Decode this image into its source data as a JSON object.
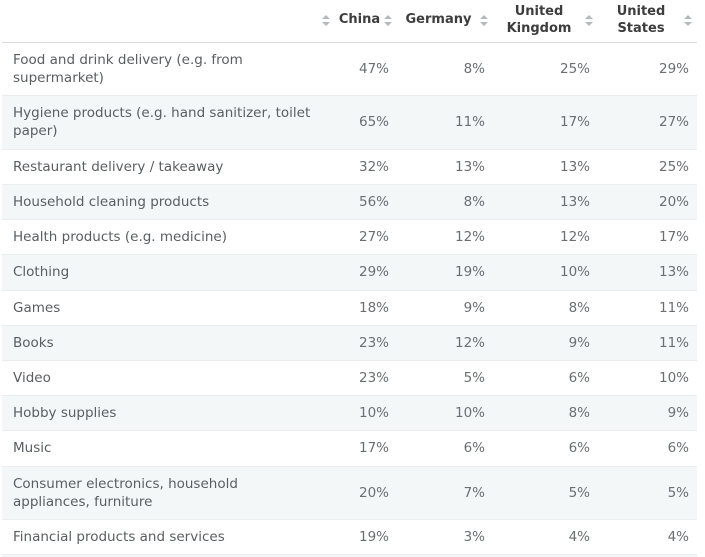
{
  "icons": {
    "sort_icon": "up-down-triangles"
  },
  "table": {
    "columns": [
      {
        "label": "China"
      },
      {
        "label": "Germany"
      },
      {
        "label": "United Kingdom"
      },
      {
        "label": "United States"
      }
    ],
    "rows": [
      {
        "label": "Food and drink delivery (e.g. from supermarket)",
        "values": [
          "47%",
          "8%",
          "25%",
          "29%"
        ]
      },
      {
        "label": "Hygiene products (e.g. hand sanitizer, toilet paper)",
        "values": [
          "65%",
          "11%",
          "17%",
          "27%"
        ]
      },
      {
        "label": "Restaurant delivery / takeaway",
        "values": [
          "32%",
          "13%",
          "13%",
          "25%"
        ]
      },
      {
        "label": "Household cleaning products",
        "values": [
          "56%",
          "8%",
          "13%",
          "20%"
        ]
      },
      {
        "label": "Health products (e.g. medicine)",
        "values": [
          "27%",
          "12%",
          "12%",
          "17%"
        ]
      },
      {
        "label": "Clothing",
        "values": [
          "29%",
          "19%",
          "10%",
          "13%"
        ]
      },
      {
        "label": "Games",
        "values": [
          "18%",
          "9%",
          "8%",
          "11%"
        ]
      },
      {
        "label": "Books",
        "values": [
          "23%",
          "12%",
          "9%",
          "11%"
        ]
      },
      {
        "label": "Video",
        "values": [
          "23%",
          "5%",
          "6%",
          "10%"
        ]
      },
      {
        "label": "Hobby supplies",
        "values": [
          "10%",
          "10%",
          "8%",
          "9%"
        ]
      },
      {
        "label": "Music",
        "values": [
          "17%",
          "6%",
          "6%",
          "6%"
        ]
      },
      {
        "label": "Consumer electronics, household appliances, furniture",
        "values": [
          "20%",
          "7%",
          "5%",
          "5%"
        ]
      },
      {
        "label": "Financial products and services",
        "values": [
          "19%",
          "3%",
          "4%",
          "4%"
        ]
      }
    ]
  },
  "chart_data": {
    "type": "table",
    "title": "",
    "categories": [
      "Food and drink delivery (e.g. from supermarket)",
      "Hygiene products (e.g. hand sanitizer, toilet paper)",
      "Restaurant delivery / takeaway",
      "Household cleaning products",
      "Health products (e.g. medicine)",
      "Clothing",
      "Games",
      "Books",
      "Video",
      "Hobby supplies",
      "Music",
      "Consumer electronics, household appliances, furniture",
      "Financial products and services"
    ],
    "series": [
      {
        "name": "China",
        "values": [
          47,
          65,
          32,
          56,
          27,
          29,
          18,
          23,
          23,
          10,
          17,
          20,
          19
        ]
      },
      {
        "name": "Germany",
        "values": [
          8,
          11,
          13,
          8,
          12,
          19,
          9,
          12,
          5,
          10,
          6,
          7,
          3
        ]
      },
      {
        "name": "United Kingdom",
        "values": [
          25,
          17,
          13,
          13,
          12,
          10,
          8,
          9,
          6,
          8,
          6,
          5,
          4
        ]
      },
      {
        "name": "United States",
        "values": [
          29,
          27,
          25,
          20,
          17,
          13,
          11,
          11,
          10,
          9,
          6,
          5,
          4
        ]
      }
    ],
    "unit": "%",
    "layout": {
      "row_striping": true,
      "sortable_columns": true
    }
  },
  "colors": {
    "stripe_row_bg": "#f4f7f8",
    "header_text": "#3d3d3d",
    "row_label_text": "#5a5e61",
    "value_text": "#6b6f72",
    "sort_arrow": "#b3b9bd",
    "header_border": "#d8dcde",
    "row_border": "#e9edee"
  }
}
